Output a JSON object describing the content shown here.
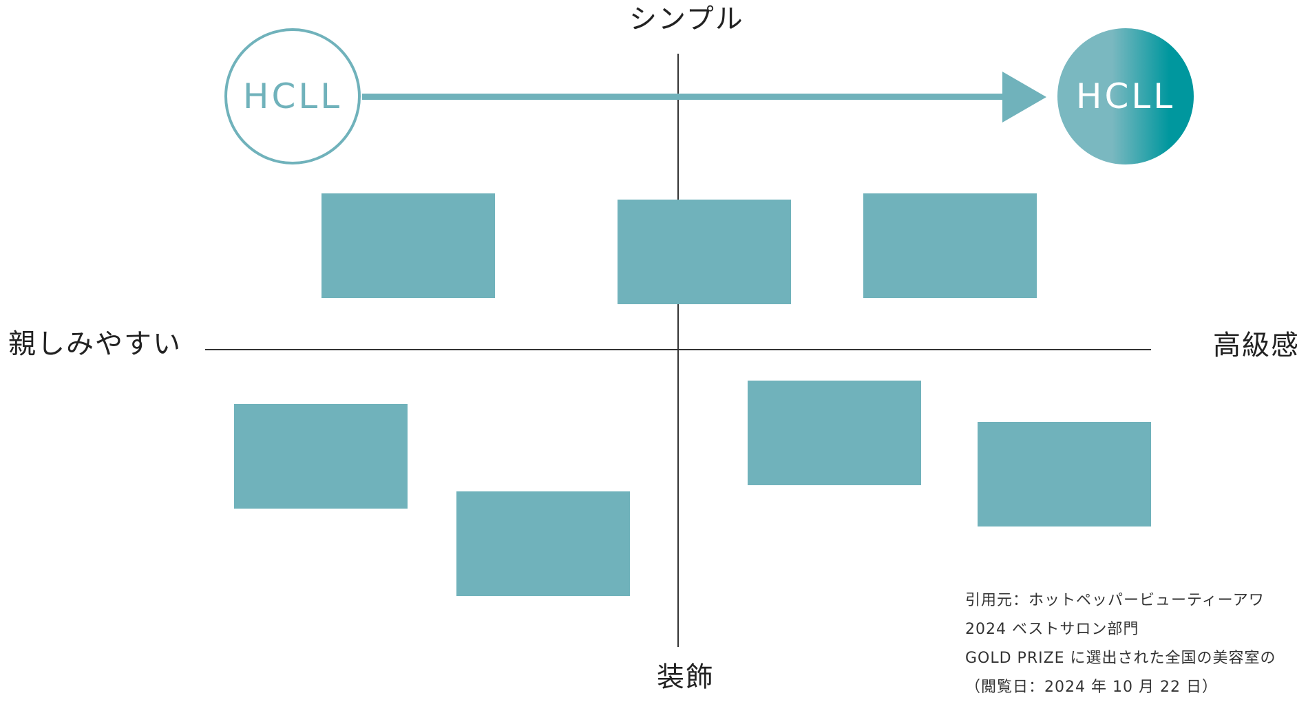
{
  "colors": {
    "box_fill": "#70B2BB",
    "accent": "#70B2BB",
    "circle_gradient_start": "#7AB8C0",
    "circle_gradient_end": "#00979E",
    "circle_text_right": "#FFFFFF",
    "axis_line": "#333333"
  },
  "axes": {
    "top": "シンプル",
    "bottom": "装飾",
    "left": "親しみやすい",
    "right": "高級感"
  },
  "arrow": {
    "from_label": "HCLL",
    "to_label": "HCLL"
  },
  "citation": {
    "lines": [
      "引用元：ホットペッパービューティーアワ",
      "2024 ベストサロン部門",
      "GOLD PRIZE に選出された全国の美容室の",
      "（閲覧日：2024 年 10 月 22 日）"
    ]
  }
}
